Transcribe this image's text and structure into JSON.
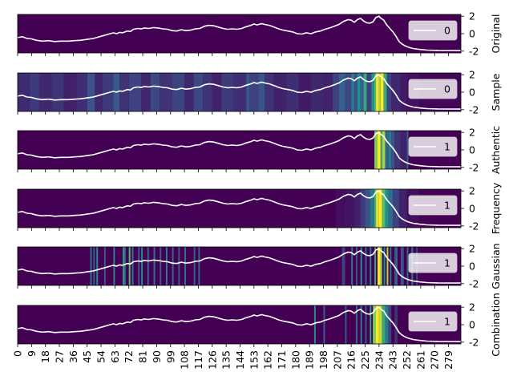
{
  "chart_data": {
    "type": "line",
    "x_range": [
      0,
      287
    ],
    "x_ticks": [
      0,
      9,
      18,
      27,
      36,
      45,
      54,
      63,
      72,
      81,
      90,
      99,
      108,
      117,
      126,
      135,
      144,
      153,
      162,
      171,
      180,
      189,
      198,
      207,
      216,
      225,
      234,
      243,
      252,
      261,
      270,
      279
    ],
    "y_ticks": [
      -2,
      0,
      2
    ],
    "y_range": [
      -2.2,
      2.2
    ],
    "signal": [
      [
        0,
        -0.45
      ],
      [
        3,
        -0.35
      ],
      [
        6,
        -0.55
      ],
      [
        9,
        -0.6
      ],
      [
        12,
        -0.75
      ],
      [
        16,
        -0.85
      ],
      [
        20,
        -0.8
      ],
      [
        24,
        -0.9
      ],
      [
        28,
        -0.85
      ],
      [
        33,
        -0.85
      ],
      [
        37,
        -0.8
      ],
      [
        41,
        -0.75
      ],
      [
        45,
        -0.65
      ],
      [
        49,
        -0.55
      ],
      [
        53,
        -0.35
      ],
      [
        56,
        -0.2
      ],
      [
        59,
        -0.05
      ],
      [
        62,
        0.1
      ],
      [
        64,
        0.0
      ],
      [
        66,
        0.15
      ],
      [
        68,
        0.1
      ],
      [
        71,
        0.3
      ],
      [
        73,
        0.25
      ],
      [
        75,
        0.5
      ],
      [
        78,
        0.6
      ],
      [
        80,
        0.55
      ],
      [
        82,
        0.65
      ],
      [
        85,
        0.6
      ],
      [
        88,
        0.7
      ],
      [
        91,
        0.65
      ],
      [
        94,
        0.55
      ],
      [
        97,
        0.5
      ],
      [
        100,
        0.35
      ],
      [
        103,
        0.3
      ],
      [
        106,
        0.45
      ],
      [
        109,
        0.35
      ],
      [
        112,
        0.4
      ],
      [
        115,
        0.55
      ],
      [
        118,
        0.6
      ],
      [
        121,
        0.85
      ],
      [
        124,
        0.95
      ],
      [
        127,
        0.9
      ],
      [
        130,
        0.75
      ],
      [
        133,
        0.6
      ],
      [
        136,
        0.5
      ],
      [
        139,
        0.55
      ],
      [
        142,
        0.5
      ],
      [
        145,
        0.6
      ],
      [
        148,
        0.8
      ],
      [
        151,
        0.95
      ],
      [
        153,
        1.1
      ],
      [
        155,
        1.0
      ],
      [
        158,
        1.15
      ],
      [
        160,
        1.05
      ],
      [
        163,
        0.95
      ],
      [
        166,
        0.75
      ],
      [
        169,
        0.55
      ],
      [
        172,
        0.4
      ],
      [
        175,
        0.3
      ],
      [
        178,
        0.2
      ],
      [
        181,
        0.0
      ],
      [
        184,
        -0.05
      ],
      [
        187,
        0.1
      ],
      [
        190,
        0.0
      ],
      [
        193,
        0.2
      ],
      [
        196,
        0.3
      ],
      [
        199,
        0.5
      ],
      [
        202,
        0.65
      ],
      [
        205,
        0.85
      ],
      [
        208,
        1.05
      ],
      [
        211,
        1.4
      ],
      [
        214,
        1.6
      ],
      [
        216,
        1.55
      ],
      [
        218,
        1.3
      ],
      [
        220,
        1.6
      ],
      [
        222,
        1.75
      ],
      [
        224,
        1.45
      ],
      [
        226,
        1.25
      ],
      [
        228,
        1.2
      ],
      [
        230,
        1.35
      ],
      [
        232,
        1.85
      ],
      [
        234,
        2.0
      ],
      [
        235,
        1.8
      ],
      [
        237,
        1.55
      ],
      [
        239,
        1.0
      ],
      [
        241,
        0.6
      ],
      [
        243,
        0.2
      ],
      [
        245,
        -0.3
      ],
      [
        247,
        -0.9
      ],
      [
        249,
        -1.2
      ],
      [
        251,
        -1.4
      ],
      [
        253,
        -1.55
      ],
      [
        256,
        -1.7
      ],
      [
        260,
        -1.8
      ],
      [
        265,
        -1.88
      ],
      [
        272,
        -1.92
      ],
      [
        287,
        -1.93
      ]
    ],
    "panels": [
      {
        "ylabel": "Original",
        "legend": "0",
        "bands": []
      },
      {
        "ylabel": "Sample",
        "legend": "0",
        "bands": [
          [
            0,
            8,
            0.13
          ],
          [
            8,
            14,
            0.18
          ],
          [
            14,
            22,
            0.12
          ],
          [
            22,
            30,
            0.16
          ],
          [
            30,
            38,
            0.1
          ],
          [
            38,
            45,
            0.14
          ],
          [
            45,
            50,
            0.25
          ],
          [
            50,
            55,
            0.12
          ],
          [
            55,
            62,
            0.18
          ],
          [
            62,
            66,
            0.28
          ],
          [
            66,
            72,
            0.15
          ],
          [
            72,
            80,
            0.2
          ],
          [
            80,
            86,
            0.12
          ],
          [
            86,
            92,
            0.22
          ],
          [
            92,
            100,
            0.15
          ],
          [
            100,
            108,
            0.2
          ],
          [
            108,
            114,
            0.12
          ],
          [
            114,
            120,
            0.22
          ],
          [
            120,
            126,
            0.16
          ],
          [
            126,
            132,
            0.1
          ],
          [
            132,
            140,
            0.18
          ],
          [
            140,
            148,
            0.14
          ],
          [
            148,
            150,
            0.28
          ],
          [
            150,
            156,
            0.2
          ],
          [
            156,
            160,
            0.26
          ],
          [
            160,
            166,
            0.15
          ],
          [
            166,
            174,
            0.1
          ],
          [
            174,
            182,
            0.14
          ],
          [
            182,
            190,
            0.08
          ],
          [
            190,
            198,
            0.12
          ],
          [
            198,
            204,
            0.1
          ],
          [
            204,
            208,
            0.2
          ],
          [
            208,
            212,
            0.3
          ],
          [
            212,
            216,
            0.22
          ],
          [
            216,
            218,
            0.4
          ],
          [
            218,
            220,
            0.25
          ],
          [
            220,
            222,
            0.5
          ],
          [
            222,
            224,
            0.3
          ],
          [
            224,
            226,
            0.6
          ],
          [
            226,
            229,
            0.2
          ],
          [
            229,
            231,
            0.5
          ],
          [
            231,
            232,
            0.7
          ],
          [
            232,
            234,
            0.98
          ],
          [
            234,
            235,
            0.85
          ],
          [
            235,
            237,
            1.0
          ],
          [
            237,
            239,
            0.6
          ],
          [
            239,
            242,
            0.2
          ],
          [
            242,
            248,
            0.12
          ],
          [
            248,
            252,
            0.08
          ],
          [
            252,
            260,
            0.05
          ],
          [
            260,
            287,
            0.02
          ]
        ]
      },
      {
        "ylabel": "Authentic",
        "legend": "1",
        "bands": [
          [
            231,
            233,
            0.8
          ],
          [
            233,
            235,
            1.0
          ],
          [
            235,
            236,
            0.6
          ],
          [
            236,
            238,
            0.85
          ],
          [
            238,
            240,
            0.3
          ],
          [
            240,
            242,
            0.4
          ],
          [
            242,
            244,
            0.25
          ],
          [
            244,
            248,
            0.15
          ],
          [
            248,
            252,
            0.1
          ],
          [
            252,
            253,
            0.3
          ]
        ]
      },
      {
        "ylabel": "Frequency",
        "legend": "1",
        "bands": [
          [
            206,
            212,
            0.04
          ],
          [
            212,
            218,
            0.06
          ],
          [
            218,
            222,
            0.1
          ],
          [
            222,
            225,
            0.18
          ],
          [
            225,
            228,
            0.25
          ],
          [
            228,
            231,
            0.4
          ],
          [
            231,
            232,
            0.65
          ],
          [
            232,
            234,
            0.95
          ],
          [
            234,
            236,
            1.0
          ],
          [
            236,
            238,
            0.7
          ],
          [
            238,
            240,
            0.5
          ],
          [
            240,
            243,
            0.35
          ],
          [
            243,
            247,
            0.2
          ],
          [
            247,
            252,
            0.1
          ],
          [
            252,
            260,
            0.04
          ]
        ]
      },
      {
        "ylabel": "Gaussian",
        "legend": "1",
        "bands": [
          [
            47,
            48,
            0.4
          ],
          [
            49,
            50,
            0.3
          ],
          [
            51,
            52,
            0.5
          ],
          [
            56,
            57,
            0.3
          ],
          [
            62,
            63,
            0.45
          ],
          [
            68,
            69,
            0.55
          ],
          [
            69,
            70,
            0.35
          ],
          [
            72,
            73,
            0.7
          ],
          [
            74,
            75,
            0.4
          ],
          [
            78,
            79,
            0.3
          ],
          [
            80,
            81,
            0.5
          ],
          [
            84,
            85,
            0.35
          ],
          [
            88,
            89,
            0.4
          ],
          [
            92,
            93,
            0.3
          ],
          [
            96,
            97,
            0.45
          ],
          [
            100,
            101,
            0.35
          ],
          [
            104,
            105,
            0.3
          ],
          [
            108,
            109,
            0.4
          ],
          [
            114,
            115,
            0.3
          ],
          [
            117,
            118,
            0.35
          ],
          [
            210,
            212,
            0.2
          ],
          [
            216,
            217,
            0.4
          ],
          [
            219,
            220,
            0.3
          ],
          [
            222,
            223,
            0.5
          ],
          [
            225,
            226,
            0.35
          ],
          [
            228,
            229,
            0.45
          ],
          [
            231,
            232,
            0.6
          ],
          [
            233,
            235,
            1.0
          ],
          [
            235,
            236,
            0.8
          ],
          [
            237,
            238,
            0.5
          ],
          [
            239,
            240,
            0.9
          ],
          [
            241,
            242,
            0.4
          ],
          [
            244,
            246,
            0.3
          ],
          [
            248,
            250,
            0.25
          ],
          [
            252,
            253,
            0.35
          ],
          [
            255,
            256,
            0.4
          ],
          [
            258,
            259,
            0.2
          ]
        ]
      },
      {
        "ylabel": "Combination",
        "legend": "1",
        "bands": [
          [
            192,
            193,
            0.5
          ],
          [
            198,
            199,
            0.3
          ],
          [
            212,
            213,
            0.3
          ],
          [
            219,
            220,
            0.35
          ],
          [
            222,
            223,
            0.4
          ],
          [
            225,
            226,
            0.3
          ],
          [
            228,
            229,
            0.55
          ],
          [
            230,
            232,
            0.8
          ],
          [
            232,
            234,
            1.0
          ],
          [
            234,
            236,
            0.9
          ],
          [
            236,
            238,
            0.6
          ],
          [
            238,
            240,
            0.4
          ],
          [
            240,
            242,
            0.2
          ],
          [
            244,
            246,
            0.15
          ]
        ]
      }
    ]
  }
}
